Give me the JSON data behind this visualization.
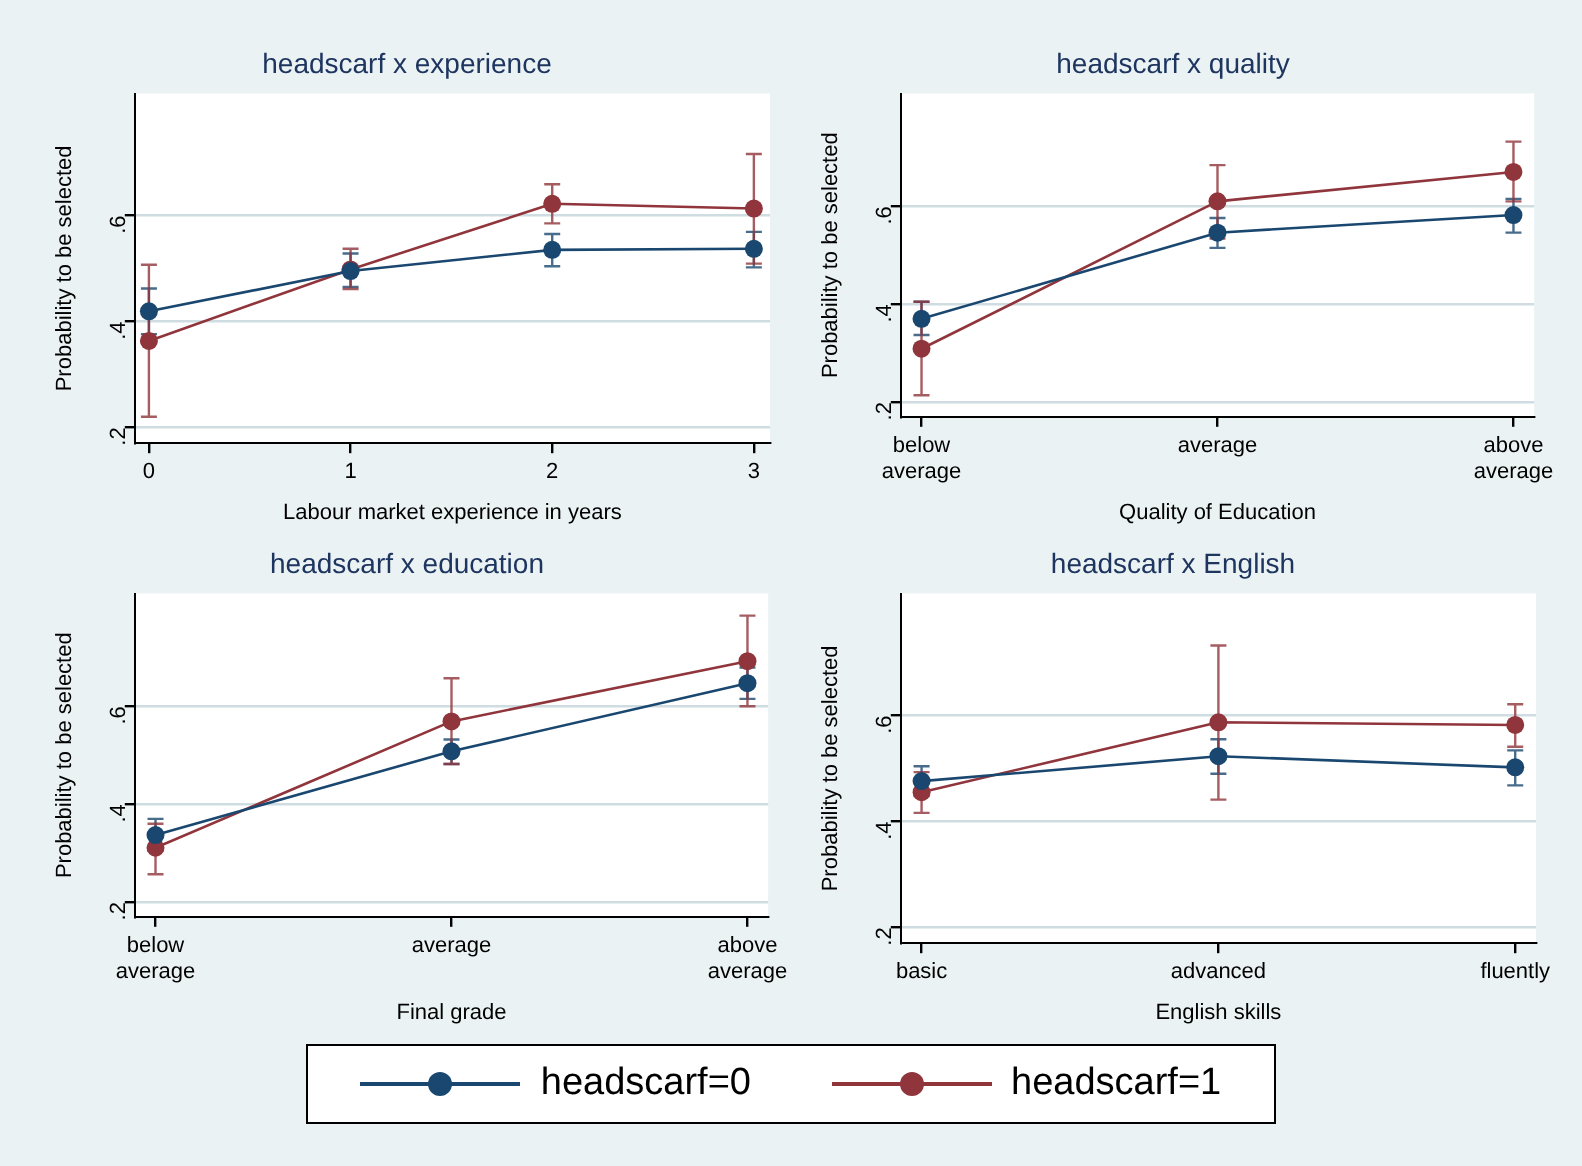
{
  "chart_data": [
    {
      "type": "line",
      "title": "headscarf x experience",
      "xlabel": "Labour market experience in years",
      "ylabel": "Probability to be selected",
      "x": [
        0,
        1,
        2,
        3
      ],
      "xlim": [
        -0.07,
        3.08
      ],
      "xticks": [
        0,
        1,
        2,
        3
      ],
      "ylim": [
        0.17,
        0.83
      ],
      "yticks": [
        {
          "value": 0.2,
          "label": ".2"
        },
        {
          "value": 0.4,
          "label": ".4"
        },
        {
          "value": 0.6,
          "label": ".6"
        }
      ],
      "grid": "y",
      "marker": "circle",
      "legend": "bottom",
      "series": [
        {
          "name": "headscarf=0",
          "color": "#1a476f",
          "values": [
            0.419,
            0.495,
            0.535,
            0.537
          ],
          "errors": [
            [
              0.376,
              0.462
            ],
            [
              0.465,
              0.528
            ],
            [
              0.504,
              0.565
            ],
            [
              0.502,
              0.569
            ]
          ]
        },
        {
          "name": "headscarf=1",
          "color": "#90353b",
          "values": [
            0.363,
            0.498,
            0.622,
            0.613
          ],
          "errors": [
            [
              0.22,
              0.507
            ],
            [
              0.461,
              0.537
            ],
            [
              0.585,
              0.659
            ],
            [
              0.509,
              0.716
            ]
          ]
        }
      ]
    },
    {
      "type": "line",
      "title": "headscarf x quality",
      "xlabel": "Quality of Education",
      "ylabel": "Probability to be selected",
      "categories": [
        "below average",
        "average",
        "above average"
      ],
      "ylim": [
        0.17,
        0.83
      ],
      "yticks": [
        {
          "value": 0.2,
          "label": ".2"
        },
        {
          "value": 0.4,
          "label": ".4"
        },
        {
          "value": 0.6,
          "label": ".6"
        }
      ],
      "grid": "y",
      "marker": "circle",
      "series": [
        {
          "color": "#1a476f",
          "values": [
            0.37,
            0.546,
            0.582
          ],
          "errors": [
            [
              0.337,
              0.405
            ],
            [
              0.515,
              0.576
            ],
            [
              0.546,
              0.615
            ]
          ]
        },
        {
          "color": "#90353b",
          "values": [
            0.309,
            0.61,
            0.67
          ],
          "errors": [
            [
              0.214,
              0.405
            ],
            [
              0.534,
              0.684
            ],
            [
              0.61,
              0.732
            ]
          ]
        }
      ]
    },
    {
      "type": "line",
      "title": "headscarf x education",
      "xlabel": "Final grade",
      "ylabel": "Probability to be selected",
      "categories": [
        "below average",
        "average",
        "above average"
      ],
      "ylim": [
        0.17,
        0.83
      ],
      "yticks": [
        {
          "value": 0.2,
          "label": ".2"
        },
        {
          "value": 0.4,
          "label": ".4"
        },
        {
          "value": 0.6,
          "label": ".6"
        }
      ],
      "grid": "y",
      "marker": "circle",
      "series": [
        {
          "color": "#1a476f",
          "values": [
            0.337,
            0.508,
            0.647
          ],
          "errors": [
            [
              0.305,
              0.37
            ],
            [
              0.482,
              0.532
            ],
            [
              0.615,
              0.679
            ]
          ]
        },
        {
          "color": "#90353b",
          "values": [
            0.311,
            0.569,
            0.692
          ],
          "errors": [
            [
              0.257,
              0.36
            ],
            [
              0.482,
              0.657
            ],
            [
              0.6,
              0.785
            ]
          ]
        }
      ]
    },
    {
      "type": "line",
      "title": "headscarf x English",
      "xlabel": "English skills",
      "ylabel": "Probability to be selected",
      "categories": [
        "basic",
        "advanced",
        "fluently"
      ],
      "ylim": [
        0.17,
        0.83
      ],
      "yticks": [
        {
          "value": 0.2,
          "label": ".2"
        },
        {
          "value": 0.4,
          "label": ".4"
        },
        {
          "value": 0.6,
          "label": ".6"
        }
      ],
      "grid": "y",
      "marker": "circle",
      "series": [
        {
          "color": "#1a476f",
          "values": [
            0.476,
            0.523,
            0.502
          ],
          "errors": [
            [
              0.448,
              0.504
            ],
            [
              0.49,
              0.555
            ],
            [
              0.468,
              0.534
            ]
          ]
        },
        {
          "color": "#90353b",
          "values": [
            0.455,
            0.587,
            0.582
          ],
          "errors": [
            [
              0.416,
              0.493
            ],
            [
              0.441,
              0.732
            ],
            [
              0.541,
              0.621
            ]
          ]
        }
      ]
    }
  ]
}
